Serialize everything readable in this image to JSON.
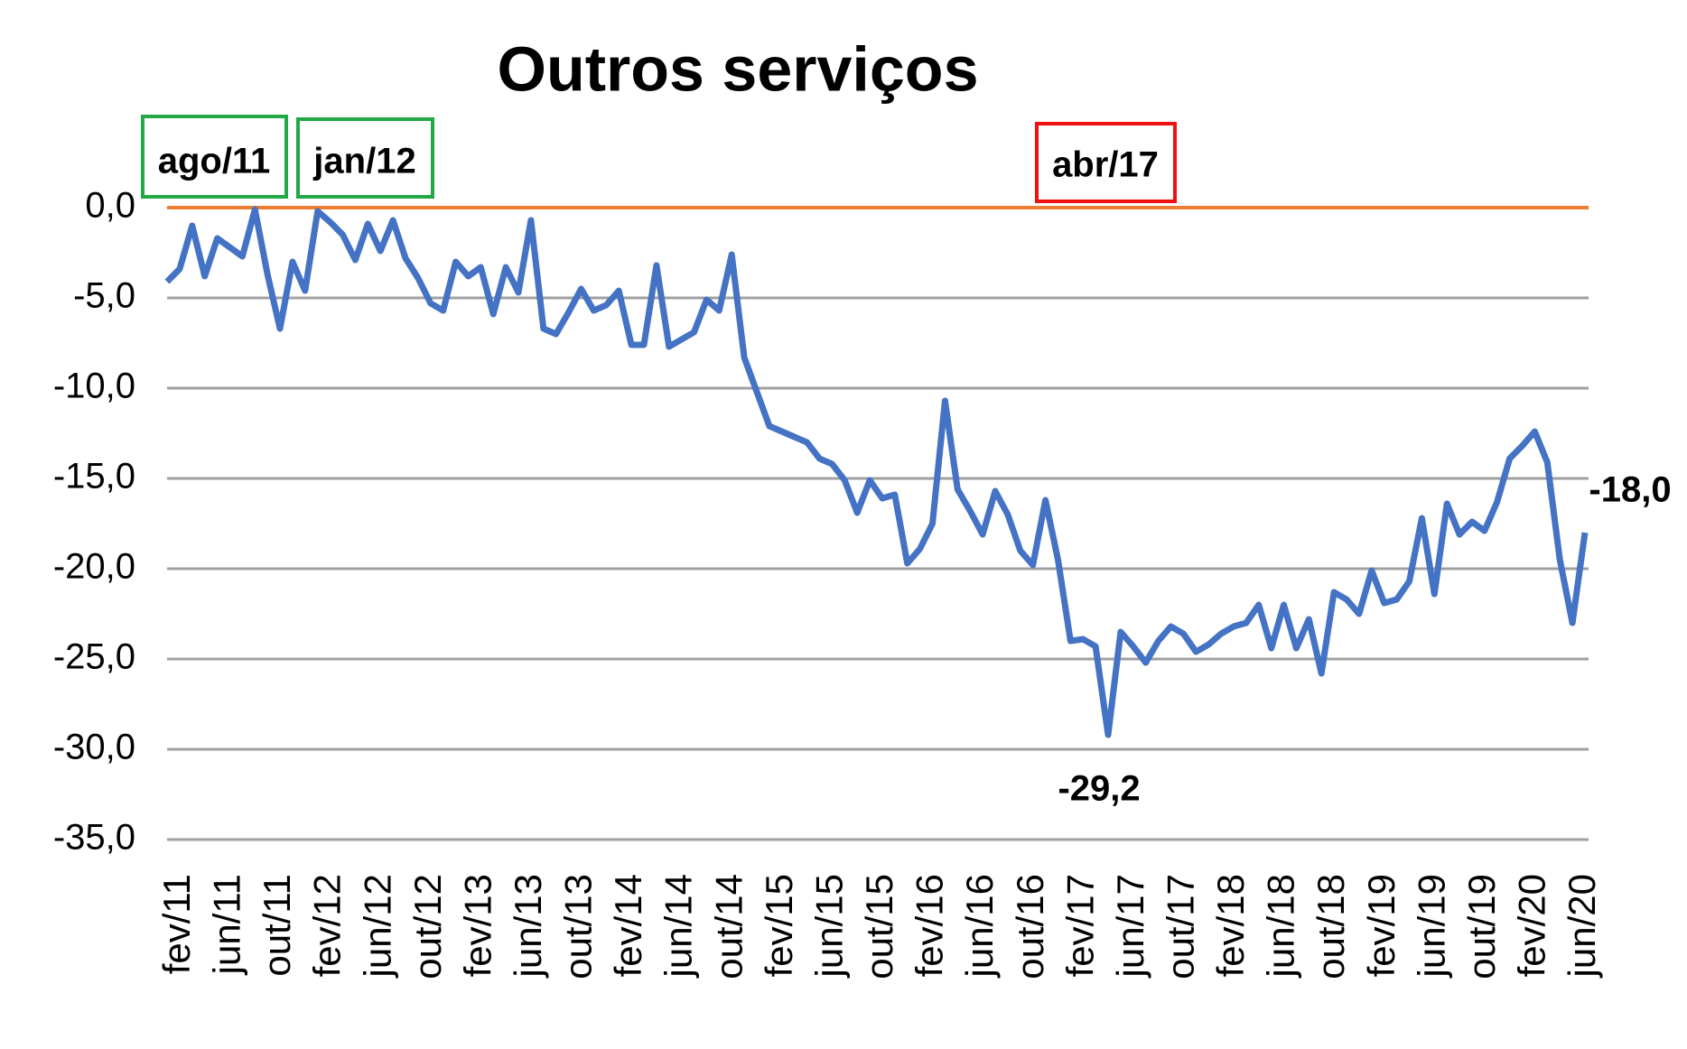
{
  "chart_data": {
    "type": "line",
    "title": "Outros serviços",
    "annotations": [
      "ago/11",
      "jan/12",
      "abr/17"
    ],
    "categories": [
      null,
      "fev/11",
      null,
      null,
      null,
      "jun/11",
      null,
      null,
      null,
      "out/11",
      null,
      null,
      null,
      "fev/12",
      null,
      null,
      null,
      "jun/12",
      null,
      null,
      null,
      "out/12",
      null,
      null,
      null,
      "fev/13",
      null,
      null,
      null,
      "jun/13",
      null,
      null,
      null,
      "out/13",
      null,
      null,
      null,
      "fev/14",
      null,
      null,
      null,
      "jun/14",
      null,
      null,
      null,
      "out/14",
      null,
      null,
      null,
      "fev/15",
      null,
      null,
      null,
      "jun/15",
      null,
      null,
      null,
      "out/15",
      null,
      null,
      null,
      "fev/16",
      null,
      null,
      null,
      "jun/16",
      null,
      null,
      null,
      "out/16",
      null,
      null,
      null,
      "fev/17",
      null,
      null,
      null,
      "jun/17",
      null,
      null,
      null,
      "out/17",
      null,
      null,
      null,
      "fev/18",
      null,
      null,
      null,
      "jun/18",
      null,
      null,
      null,
      "out/18",
      null,
      null,
      null,
      "fev/19",
      null,
      null,
      null,
      "jun/19",
      null,
      null,
      null,
      "out/19",
      null,
      null,
      null,
      "fev/20",
      null,
      null,
      null,
      "jun/20"
    ],
    "series": [
      {
        "color": "#4472c4",
        "values": [
          -4.1,
          -3.4,
          -1.0,
          -3.8,
          -1.7,
          -2.2,
          -2.7,
          -0.1,
          -3.7,
          -6.7,
          -3.0,
          -4.6,
          -0.2,
          -0.8,
          -1.5,
          -2.9,
          -0.9,
          -2.4,
          -0.7,
          -2.8,
          -3.9,
          -5.3,
          -5.7,
          -3.0,
          -3.8,
          -3.3,
          -5.9,
          -3.3,
          -4.7,
          -0.7,
          -6.7,
          -7.0,
          -5.8,
          -4.5,
          -5.7,
          -5.4,
          -4.6,
          -7.6,
          -7.6,
          -3.2,
          -7.7,
          -7.3,
          -6.9,
          -5.1,
          -5.7,
          -2.6,
          -8.3,
          -10.2,
          -12.1,
          -12.4,
          -12.7,
          -13.0,
          -13.9,
          -14.2,
          -15.1,
          -16.9,
          -15.1,
          -16.1,
          -15.9,
          -19.7,
          -18.9,
          -17.5,
          -10.7,
          -15.6,
          -16.8,
          -18.1,
          -15.7,
          -17.0,
          -19.0,
          -19.8,
          -16.2,
          -19.5,
          -24.0,
          -23.9,
          -24.3,
          -29.2,
          -23.5,
          -24.3,
          -25.2,
          -24.0,
          -23.2,
          -23.6,
          -24.6,
          -24.2,
          -23.6,
          -23.2,
          -23.0,
          -22.0,
          -24.4,
          -22.0,
          -24.4,
          -22.8,
          -25.8,
          -21.3,
          -21.7,
          -22.5,
          -20.1,
          -21.9,
          -21.7,
          -20.7,
          -17.2,
          -21.4,
          -16.4,
          -18.1,
          -17.4,
          -17.9,
          -16.3,
          -13.9,
          -13.2,
          -12.4,
          -14.1,
          -19.5,
          -23.0,
          -18.0
        ],
        "value_labels": [
          null,
          null,
          null,
          null,
          null,
          null,
          null,
          null,
          null,
          null,
          null,
          null,
          null,
          null,
          null,
          null,
          null,
          null,
          null,
          null,
          null,
          null,
          null,
          null,
          null,
          null,
          null,
          null,
          null,
          null,
          null,
          null,
          null,
          null,
          null,
          null,
          null,
          null,
          null,
          null,
          null,
          null,
          null,
          null,
          null,
          null,
          null,
          null,
          null,
          null,
          null,
          null,
          null,
          null,
          null,
          null,
          null,
          null,
          null,
          null,
          null,
          null,
          null,
          null,
          null,
          null,
          null,
          null,
          null,
          null,
          null,
          null,
          null,
          null,
          null,
          "-29,2",
          null,
          null,
          null,
          null,
          null,
          null,
          null,
          null,
          null,
          null,
          null,
          null,
          null,
          null,
          null,
          null,
          null,
          null,
          null,
          null,
          null,
          null,
          null,
          null,
          null,
          null,
          null,
          null,
          null,
          null,
          null,
          null,
          null,
          null,
          null,
          null,
          null,
          "-18,0"
        ]
      }
    ],
    "value_label_color": "#ff0000",
    "reference_line": {
      "value": 0,
      "color": "#ed7d31"
    },
    "ylim": [
      -35,
      0
    ],
    "yticks": [
      {
        "value": 0,
        "label": "0,0"
      },
      {
        "value": -5,
        "label": "-5,0"
      },
      {
        "value": -10,
        "label": "-10,0"
      },
      {
        "value": -15,
        "label": "-15,0"
      },
      {
        "value": -20,
        "label": "-20,0"
      },
      {
        "value": -25,
        "label": "-25,0"
      },
      {
        "value": -30,
        "label": "-30,0"
      },
      {
        "value": -35,
        "label": "-35,0"
      }
    ],
    "grid": true
  }
}
